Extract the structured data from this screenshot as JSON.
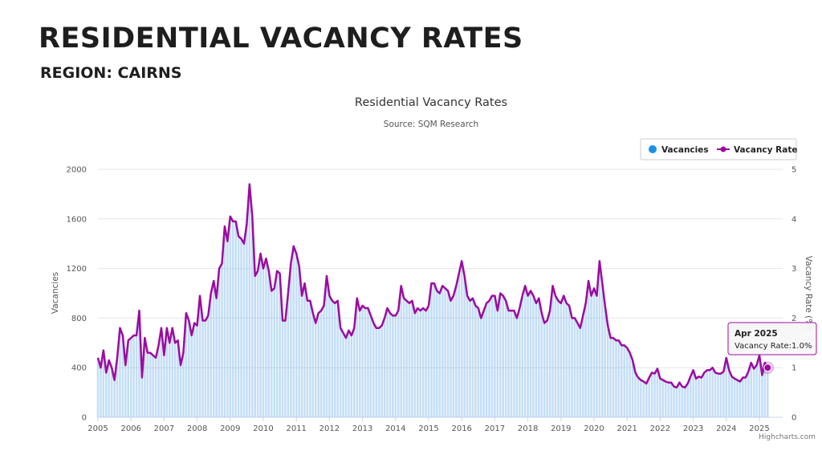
{
  "page": {
    "title": "RESIDENTIAL VACANCY RATES",
    "subtitle": "REGION: CAIRNS"
  },
  "chart_data": {
    "type": "bar",
    "title": "Residential Vacancy Rates",
    "subtitle": "Source: SQM Research",
    "xlabel": "",
    "ylabel": "Vacancies",
    "ylabel_right": "Vacancy Rate (%)",
    "ylim": [
      0,
      2000
    ],
    "ylim_right": [
      0,
      5
    ],
    "yticks": [
      "0",
      "400",
      "800",
      "1200",
      "1600",
      "2000"
    ],
    "yticks_right": [
      "0",
      "1",
      "2",
      "3",
      "4",
      "5"
    ],
    "xticks": [
      "2005",
      "2006",
      "2007",
      "2008",
      "2009",
      "2010",
      "2011",
      "2012",
      "2013",
      "2014",
      "2015",
      "2016",
      "2017",
      "2018",
      "2019",
      "2020",
      "2021",
      "2022",
      "2023",
      "2024",
      "2025"
    ],
    "x_range": [
      "2005-01",
      "2025-04"
    ],
    "grid": true,
    "legend_position": "top-right",
    "series": [
      {
        "name": "Vacancies",
        "type": "bar",
        "axis": "left",
        "color": "#7cb5ec",
        "note": "monthly vacancies follow the vacancy rate series (approx. 400 vacancies per 1% rate)"
      },
      {
        "name": "Vacancy Rate",
        "type": "line",
        "axis": "right",
        "color": "#9c0ba0",
        "points": [
          [
            "2005-01",
            1.2
          ],
          [
            "2005-02",
            1.0
          ],
          [
            "2005-03",
            1.35
          ],
          [
            "2005-04",
            0.9
          ],
          [
            "2005-05",
            1.15
          ],
          [
            "2005-06",
            1.0
          ],
          [
            "2005-07",
            0.75
          ],
          [
            "2005-08",
            1.2
          ],
          [
            "2005-09",
            1.8
          ],
          [
            "2005-10",
            1.65
          ],
          [
            "2005-11",
            1.05
          ],
          [
            "2005-12",
            1.55
          ],
          [
            "2006-01",
            1.6
          ],
          [
            "2006-02",
            1.65
          ],
          [
            "2006-03",
            1.65
          ],
          [
            "2006-04",
            2.15
          ],
          [
            "2006-05",
            0.8
          ],
          [
            "2006-06",
            1.6
          ],
          [
            "2006-07",
            1.3
          ],
          [
            "2006-08",
            1.3
          ],
          [
            "2006-09",
            1.25
          ],
          [
            "2006-10",
            1.2
          ],
          [
            "2006-11",
            1.45
          ],
          [
            "2006-12",
            1.8
          ],
          [
            "2007-01",
            1.25
          ],
          [
            "2007-02",
            1.8
          ],
          [
            "2007-03",
            1.5
          ],
          [
            "2007-04",
            1.8
          ],
          [
            "2007-05",
            1.5
          ],
          [
            "2007-06",
            1.55
          ],
          [
            "2007-07",
            1.05
          ],
          [
            "2007-08",
            1.3
          ],
          [
            "2007-09",
            2.1
          ],
          [
            "2007-10",
            1.95
          ],
          [
            "2007-11",
            1.65
          ],
          [
            "2007-12",
            1.9
          ],
          [
            "2008-01",
            1.85
          ],
          [
            "2008-02",
            2.45
          ],
          [
            "2008-03",
            1.95
          ],
          [
            "2008-04",
            1.95
          ],
          [
            "2008-05",
            2.05
          ],
          [
            "2008-06",
            2.5
          ],
          [
            "2008-07",
            2.75
          ],
          [
            "2008-08",
            2.4
          ],
          [
            "2008-09",
            3.0
          ],
          [
            "2008-10",
            3.1
          ],
          [
            "2008-11",
            3.85
          ],
          [
            "2008-12",
            3.55
          ],
          [
            "2009-01",
            4.05
          ],
          [
            "2009-02",
            3.95
          ],
          [
            "2009-03",
            3.95
          ],
          [
            "2009-04",
            3.65
          ],
          [
            "2009-05",
            3.6
          ],
          [
            "2009-06",
            3.5
          ],
          [
            "2009-07",
            3.9
          ],
          [
            "2009-08",
            4.7
          ],
          [
            "2009-09",
            4.05
          ],
          [
            "2009-10",
            2.85
          ],
          [
            "2009-11",
            2.95
          ],
          [
            "2009-12",
            3.3
          ],
          [
            "2010-01",
            3.0
          ],
          [
            "2010-02",
            3.2
          ],
          [
            "2010-03",
            2.95
          ],
          [
            "2010-04",
            2.55
          ],
          [
            "2010-05",
            2.6
          ],
          [
            "2010-06",
            2.95
          ],
          [
            "2010-07",
            2.9
          ],
          [
            "2010-08",
            1.95
          ],
          [
            "2010-09",
            1.95
          ],
          [
            "2010-10",
            2.5
          ],
          [
            "2010-11",
            3.1
          ],
          [
            "2010-12",
            3.45
          ],
          [
            "2011-01",
            3.3
          ],
          [
            "2011-02",
            3.05
          ],
          [
            "2011-03",
            2.45
          ],
          [
            "2011-04",
            2.7
          ],
          [
            "2011-05",
            2.35
          ],
          [
            "2011-06",
            2.35
          ],
          [
            "2011-07",
            2.1
          ],
          [
            "2011-08",
            1.9
          ],
          [
            "2011-09",
            2.1
          ],
          [
            "2011-10",
            2.15
          ],
          [
            "2011-11",
            2.25
          ],
          [
            "2011-12",
            2.85
          ],
          [
            "2012-01",
            2.45
          ],
          [
            "2012-02",
            2.35
          ],
          [
            "2012-03",
            2.3
          ],
          [
            "2012-04",
            2.35
          ],
          [
            "2012-05",
            1.8
          ],
          [
            "2012-06",
            1.7
          ],
          [
            "2012-07",
            1.6
          ],
          [
            "2012-08",
            1.75
          ],
          [
            "2012-09",
            1.65
          ],
          [
            "2012-10",
            1.8
          ],
          [
            "2012-11",
            2.4
          ],
          [
            "2012-12",
            2.15
          ],
          [
            "2013-01",
            2.25
          ],
          [
            "2013-02",
            2.2
          ],
          [
            "2013-03",
            2.2
          ],
          [
            "2013-04",
            2.05
          ],
          [
            "2013-05",
            1.9
          ],
          [
            "2013-06",
            1.8
          ],
          [
            "2013-07",
            1.8
          ],
          [
            "2013-08",
            1.85
          ],
          [
            "2013-09",
            2.0
          ],
          [
            "2013-10",
            2.2
          ],
          [
            "2013-11",
            2.1
          ],
          [
            "2013-12",
            2.05
          ],
          [
            "2014-01",
            2.05
          ],
          [
            "2014-02",
            2.15
          ],
          [
            "2014-03",
            2.65
          ],
          [
            "2014-04",
            2.4
          ],
          [
            "2014-05",
            2.35
          ],
          [
            "2014-06",
            2.3
          ],
          [
            "2014-07",
            2.35
          ],
          [
            "2014-08",
            2.1
          ],
          [
            "2014-09",
            2.2
          ],
          [
            "2014-10",
            2.15
          ],
          [
            "2014-11",
            2.2
          ],
          [
            "2014-12",
            2.15
          ],
          [
            "2015-01",
            2.25
          ],
          [
            "2015-02",
            2.7
          ],
          [
            "2015-03",
            2.7
          ],
          [
            "2015-04",
            2.55
          ],
          [
            "2015-05",
            2.5
          ],
          [
            "2015-06",
            2.65
          ],
          [
            "2015-07",
            2.6
          ],
          [
            "2015-08",
            2.55
          ],
          [
            "2015-09",
            2.35
          ],
          [
            "2015-10",
            2.45
          ],
          [
            "2015-11",
            2.65
          ],
          [
            "2015-12",
            2.9
          ],
          [
            "2016-01",
            3.15
          ],
          [
            "2016-02",
            2.85
          ],
          [
            "2016-03",
            2.45
          ],
          [
            "2016-04",
            2.35
          ],
          [
            "2016-05",
            2.4
          ],
          [
            "2016-06",
            2.25
          ],
          [
            "2016-07",
            2.2
          ],
          [
            "2016-08",
            2.0
          ],
          [
            "2016-09",
            2.15
          ],
          [
            "2016-10",
            2.3
          ],
          [
            "2016-11",
            2.35
          ],
          [
            "2016-12",
            2.45
          ],
          [
            "2017-01",
            2.45
          ],
          [
            "2017-02",
            2.15
          ],
          [
            "2017-03",
            2.5
          ],
          [
            "2017-04",
            2.45
          ],
          [
            "2017-05",
            2.35
          ],
          [
            "2017-06",
            2.15
          ],
          [
            "2017-07",
            2.15
          ],
          [
            "2017-08",
            2.15
          ],
          [
            "2017-09",
            2.0
          ],
          [
            "2017-10",
            2.2
          ],
          [
            "2017-11",
            2.45
          ],
          [
            "2017-12",
            2.65
          ],
          [
            "2018-01",
            2.45
          ],
          [
            "2018-02",
            2.55
          ],
          [
            "2018-03",
            2.45
          ],
          [
            "2018-04",
            2.3
          ],
          [
            "2018-05",
            2.4
          ],
          [
            "2018-06",
            2.1
          ],
          [
            "2018-07",
            1.9
          ],
          [
            "2018-08",
            1.95
          ],
          [
            "2018-09",
            2.15
          ],
          [
            "2018-10",
            2.65
          ],
          [
            "2018-11",
            2.45
          ],
          [
            "2018-12",
            2.35
          ],
          [
            "2019-01",
            2.3
          ],
          [
            "2019-02",
            2.45
          ],
          [
            "2019-03",
            2.3
          ],
          [
            "2019-04",
            2.25
          ],
          [
            "2019-05",
            2.0
          ],
          [
            "2019-06",
            2.0
          ],
          [
            "2019-07",
            1.9
          ],
          [
            "2019-08",
            1.8
          ],
          [
            "2019-09",
            2.05
          ],
          [
            "2019-10",
            2.3
          ],
          [
            "2019-11",
            2.75
          ],
          [
            "2019-12",
            2.45
          ],
          [
            "2020-01",
            2.6
          ],
          [
            "2020-02",
            2.45
          ],
          [
            "2020-03",
            3.15
          ],
          [
            "2020-04",
            2.7
          ],
          [
            "2020-05",
            2.25
          ],
          [
            "2020-06",
            1.85
          ],
          [
            "2020-07",
            1.6
          ],
          [
            "2020-08",
            1.6
          ],
          [
            "2020-09",
            1.55
          ],
          [
            "2020-10",
            1.55
          ],
          [
            "2020-11",
            1.45
          ],
          [
            "2020-12",
            1.45
          ],
          [
            "2021-01",
            1.4
          ],
          [
            "2021-02",
            1.3
          ],
          [
            "2021-03",
            1.15
          ],
          [
            "2021-04",
            0.9
          ],
          [
            "2021-05",
            0.8
          ],
          [
            "2021-06",
            0.75
          ],
          [
            "2021-07",
            0.72
          ],
          [
            "2021-08",
            0.68
          ],
          [
            "2021-09",
            0.8
          ],
          [
            "2021-10",
            0.9
          ],
          [
            "2021-11",
            0.88
          ],
          [
            "2021-12",
            0.98
          ],
          [
            "2022-01",
            0.78
          ],
          [
            "2022-02",
            0.75
          ],
          [
            "2022-03",
            0.72
          ],
          [
            "2022-04",
            0.7
          ],
          [
            "2022-05",
            0.7
          ],
          [
            "2022-06",
            0.62
          ],
          [
            "2022-07",
            0.6
          ],
          [
            "2022-08",
            0.7
          ],
          [
            "2022-09",
            0.62
          ],
          [
            "2022-10",
            0.6
          ],
          [
            "2022-11",
            0.68
          ],
          [
            "2022-12",
            0.82
          ],
          [
            "2023-01",
            0.95
          ],
          [
            "2023-02",
            0.78
          ],
          [
            "2023-03",
            0.82
          ],
          [
            "2023-04",
            0.8
          ],
          [
            "2023-05",
            0.9
          ],
          [
            "2023-06",
            0.95
          ],
          [
            "2023-07",
            0.95
          ],
          [
            "2023-08",
            1.0
          ],
          [
            "2023-09",
            0.9
          ],
          [
            "2023-10",
            0.88
          ],
          [
            "2023-11",
            0.88
          ],
          [
            "2023-12",
            0.92
          ],
          [
            "2024-01",
            1.2
          ],
          [
            "2024-02",
            0.95
          ],
          [
            "2024-03",
            0.82
          ],
          [
            "2024-04",
            0.78
          ],
          [
            "2024-05",
            0.75
          ],
          [
            "2024-06",
            0.72
          ],
          [
            "2024-07",
            0.8
          ],
          [
            "2024-08",
            0.8
          ],
          [
            "2024-09",
            0.92
          ],
          [
            "2024-10",
            1.1
          ],
          [
            "2024-11",
            0.98
          ],
          [
            "2024-12",
            1.05
          ],
          [
            "2025-01",
            1.25
          ],
          [
            "2025-02",
            0.85
          ],
          [
            "2025-03",
            1.1
          ],
          [
            "2025-04",
            1.0
          ]
        ]
      }
    ],
    "tooltip": {
      "label": "Apr 2025",
      "value_text": "Vacancy Rate:1.0%"
    },
    "credits": "Highcharts.com",
    "colors": {
      "bar": "#7cb5ec",
      "line": "#9c0ba0",
      "grid": "#e6e6e6",
      "legend_dot": "#1b8fe6"
    }
  }
}
